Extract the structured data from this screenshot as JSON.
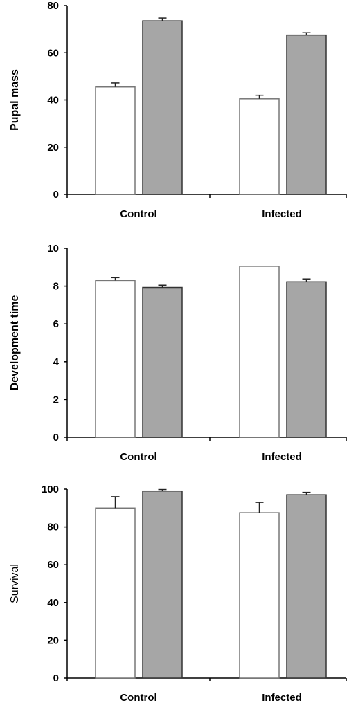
{
  "colors": {
    "white_bar_fill": "#ffffff",
    "white_bar_stroke": "#777777",
    "grey_bar_fill": "#a6a6a6",
    "grey_bar_stroke": "#333333",
    "axis": "#000000"
  },
  "chart_data": [
    {
      "type": "bar",
      "ylabel": "Pupal mass",
      "ylim": [
        0,
        80
      ],
      "yticks": [
        0,
        20,
        40,
        60,
        80
      ],
      "categories": [
        "Control",
        "Infected"
      ],
      "grid": false,
      "series": [
        {
          "values": [
            45.5,
            40.5
          ],
          "errors": [
            1.7,
            1.5
          ],
          "fill_key": "white_bar_fill"
        },
        {
          "values": [
            73.5,
            67.5
          ],
          "errors": [
            1.2,
            1.0
          ],
          "fill_key": "grey_bar_fill"
        }
      ]
    },
    {
      "type": "bar",
      "ylabel": "Development time",
      "ylim": [
        0,
        10
      ],
      "yticks": [
        0,
        2,
        4,
        6,
        8,
        10
      ],
      "categories": [
        "Control",
        "Infected"
      ],
      "grid": false,
      "series": [
        {
          "values": [
            8.3,
            9.05
          ],
          "errors": [
            0.15,
            0.0
          ],
          "fill_key": "white_bar_fill"
        },
        {
          "values": [
            7.93,
            8.23
          ],
          "errors": [
            0.12,
            0.15
          ],
          "fill_key": "grey_bar_fill"
        }
      ]
    },
    {
      "type": "bar",
      "ylabel": "Survival",
      "ylim": [
        0,
        100
      ],
      "yticks": [
        0,
        20,
        40,
        60,
        80,
        100
      ],
      "categories": [
        "Control",
        "Infected"
      ],
      "grid": false,
      "series": [
        {
          "values": [
            90,
            87.5
          ],
          "errors": [
            6.0,
            5.5
          ],
          "fill_key": "white_bar_fill"
        },
        {
          "values": [
            99,
            97
          ],
          "errors": [
            0.8,
            1.3
          ],
          "fill_key": "grey_bar_fill"
        }
      ]
    }
  ]
}
